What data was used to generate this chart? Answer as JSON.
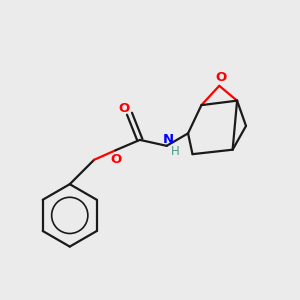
{
  "background_color": "#ebebeb",
  "bond_color": "#1a1a1a",
  "oxygen_color": "#ff0000",
  "nitrogen_color": "#0000ff",
  "hydrogen_color": "#4a9a8a",
  "line_width": 1.6,
  "figsize": [
    3.0,
    3.0
  ],
  "dpi": 100,
  "xlim": [
    0,
    10
  ],
  "ylim": [
    0,
    10
  ]
}
